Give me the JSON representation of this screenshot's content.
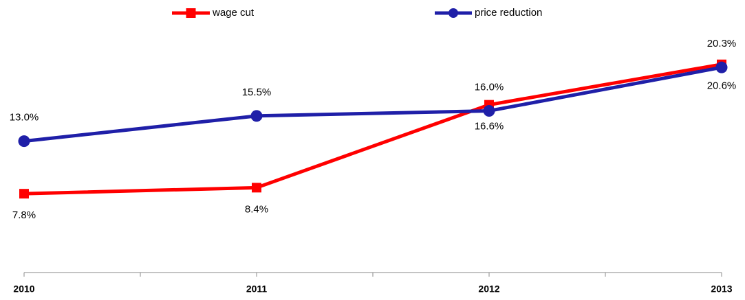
{
  "chart_data": {
    "type": "line",
    "categories": [
      "2010",
      "2011",
      "2012",
      "2013"
    ],
    "series": [
      {
        "name": "wage cut",
        "color": "#ff0000",
        "marker": "square",
        "values": [
          7.8,
          8.4,
          16.6,
          20.6
        ],
        "value_labels": [
          "7.8%",
          "8.4%",
          "16.6%",
          "20.6%"
        ]
      },
      {
        "name": "price reduction",
        "color": "#1f1fa8",
        "marker": "circle",
        "values": [
          13.0,
          15.5,
          16.0,
          20.3
        ],
        "value_labels": [
          "13.0%",
          "15.5%",
          "16.0%",
          "20.3%"
        ]
      }
    ],
    "ylim": [
      0,
      25
    ]
  }
}
